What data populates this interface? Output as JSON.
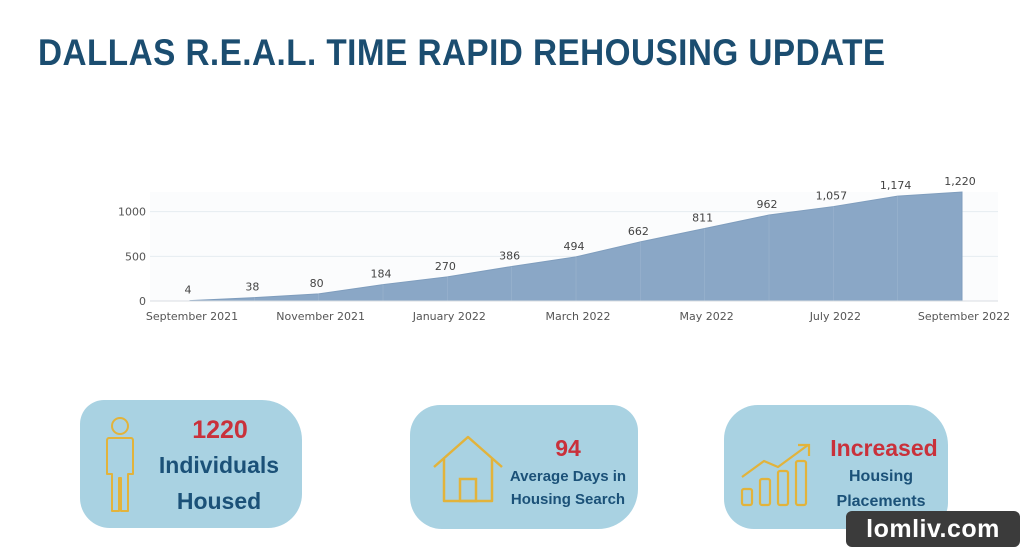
{
  "title": "DALLAS R.E.A.L. TIME RAPID REHOUSING UPDATE",
  "chart_data": {
    "type": "area",
    "x": [
      "2021-09",
      "2021-10",
      "2021-11",
      "2021-12",
      "2022-01",
      "2022-02",
      "2022-03",
      "2022-04",
      "2022-05",
      "2022-06",
      "2022-07",
      "2022-08",
      "2022-09"
    ],
    "values": [
      4,
      38,
      80,
      184,
      270,
      386,
      494,
      662,
      811,
      962,
      1057,
      1174,
      1220
    ],
    "data_labels": [
      "4",
      "38",
      "80",
      "184",
      "270",
      "386",
      "494",
      "662",
      "811",
      "962",
      "1,057",
      "1,174",
      "1,220"
    ],
    "x_tick_labels": [
      "September 2021",
      "November 2021",
      "January 2022",
      "March 2022",
      "May 2022",
      "July 2022",
      "September 2022"
    ],
    "y_ticks": [
      0,
      500,
      1000
    ],
    "y_tick_labels": [
      "0",
      "500",
      "1000"
    ],
    "ylim": [
      0,
      1220
    ],
    "title": "",
    "xlabel": "",
    "ylabel": "",
    "grid": true,
    "color": "#8aa7c6"
  },
  "cards": [
    {
      "icon": "person-icon",
      "number": "1220",
      "label_line1": "Individuals",
      "label_line2": "Housed"
    },
    {
      "icon": "house-icon",
      "number": "94",
      "label_line1": "Average Days in",
      "label_line2": "Housing Search"
    },
    {
      "icon": "growth-chart-icon",
      "number": "Increased",
      "label_line1": "Housing",
      "label_line2": "Placements"
    }
  ],
  "colors": {
    "title": "#1b4d70",
    "card_bg": "#a9d2e2",
    "accent_red": "#c9313b",
    "label_blue": "#1b5178",
    "icon_gold": "#e2b33b"
  },
  "watermark": "lomliv.com"
}
